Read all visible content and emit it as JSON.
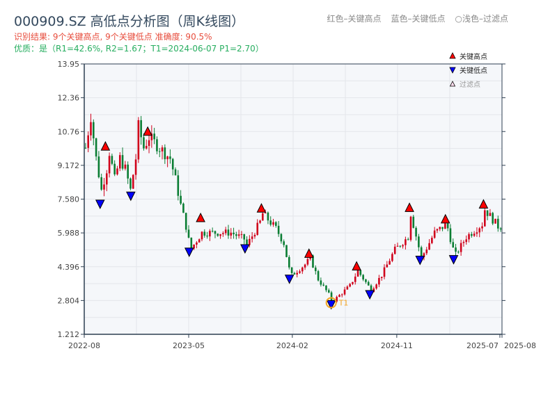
{
  "header": {
    "title": "000909.SZ 高低点分析图（周K线图）",
    "result": "识别结果: 9个关键高点, 9个关键低点  准确度: 90.5%",
    "quality": "优质：是（R1=42.6%, R2=1.67；T1=2024-06-07 P1=2.70）",
    "legend_red": "红色–关键高点",
    "legend_blue": "蓝色–关键低点",
    "legend_light": "○浅色–过滤点"
  },
  "colors": {
    "up": "#d0021b",
    "down": "#0a7d33",
    "high": "#ff0000",
    "low": "#0000ff",
    "t1": "#f5a623",
    "bg": "#f5f7fa"
  },
  "chart_data": {
    "type": "candlestick",
    "ylim": [
      1.212,
      13.95
    ],
    "yticks": [
      "13.95",
      "12.36",
      "10.76",
      "9.172",
      "7.580",
      "5.988",
      "4.396",
      "2.804",
      "1.212"
    ],
    "xticks": [
      {
        "label": "2022-08",
        "week": 0
      },
      {
        "label": "2023-05",
        "week": 39.5
      },
      {
        "label": "2024-02",
        "week": 78.7
      },
      {
        "label": "2024-11",
        "week": 118.2
      },
      {
        "label": "2025-07",
        "week": 157.2
      },
      {
        "label": "2025-08",
        "week": 158
      }
    ],
    "xlim": [
      0,
      158
    ],
    "close_path": [
      [
        0,
        10
      ],
      [
        2,
        11.5
      ],
      [
        4,
        9.5
      ],
      [
        6,
        8
      ],
      [
        8,
        9
      ],
      [
        9,
        9.8
      ],
      [
        11,
        8.5
      ],
      [
        13,
        9.5
      ],
      [
        15,
        9
      ],
      [
        17,
        8
      ],
      [
        19,
        9.5
      ],
      [
        20,
        11
      ],
      [
        22,
        10
      ],
      [
        24,
        10.5
      ],
      [
        28,
        10
      ],
      [
        32,
        9.5
      ],
      [
        34,
        8.5
      ],
      [
        36,
        7.3
      ],
      [
        38,
        6.3
      ],
      [
        39.7,
        5.2
      ],
      [
        44,
        6
      ],
      [
        48,
        6
      ],
      [
        55,
        6
      ],
      [
        60,
        5.7
      ],
      [
        61,
        5.4
      ],
      [
        66,
        6.5
      ],
      [
        67,
        6.9
      ],
      [
        72,
        6.2
      ],
      [
        75,
        5.5
      ],
      [
        77,
        4.3
      ],
      [
        78,
        4
      ],
      [
        83,
        4.5
      ],
      [
        85,
        4.8
      ],
      [
        88,
        3.8
      ],
      [
        92,
        3.1
      ],
      [
        93.4,
        2.75
      ],
      [
        100,
        3.5
      ],
      [
        103,
        4.2
      ],
      [
        108,
        3.3
      ],
      [
        112,
        4
      ],
      [
        117,
        5.2
      ],
      [
        122,
        5.8
      ],
      [
        123,
        6.9
      ],
      [
        127,
        4.8
      ],
      [
        132,
        6
      ],
      [
        136.6,
        6.4
      ],
      [
        139.7,
        4.9
      ],
      [
        144,
        5.8
      ],
      [
        150,
        6.4
      ],
      [
        151,
        7.1
      ],
      [
        156,
        6.3
      ],
      [
        158,
        6.3
      ]
    ],
    "highs": [
      [
        8,
        9.82
      ],
      [
        24,
        10.52
      ],
      [
        44,
        6.45
      ],
      [
        67,
        6.9
      ],
      [
        85,
        4.77
      ],
      [
        103,
        4.17
      ],
      [
        123,
        6.93
      ],
      [
        136.6,
        6.39
      ],
      [
        151,
        7.09
      ]
    ],
    "lows": [
      [
        6,
        7.47
      ],
      [
        17.6,
        7.85
      ],
      [
        39.7,
        5.21
      ],
      [
        60.8,
        5.37
      ],
      [
        77.6,
        3.94
      ],
      [
        93.4,
        2.74
      ],
      [
        108,
        3.21
      ],
      [
        127,
        4.83
      ],
      [
        139.7,
        4.86
      ]
    ],
    "t1": {
      "label": "T1",
      "week": 93.4,
      "price": 2.7
    },
    "legend": [
      "关键高点",
      "关键低点",
      "过滤点"
    ]
  }
}
